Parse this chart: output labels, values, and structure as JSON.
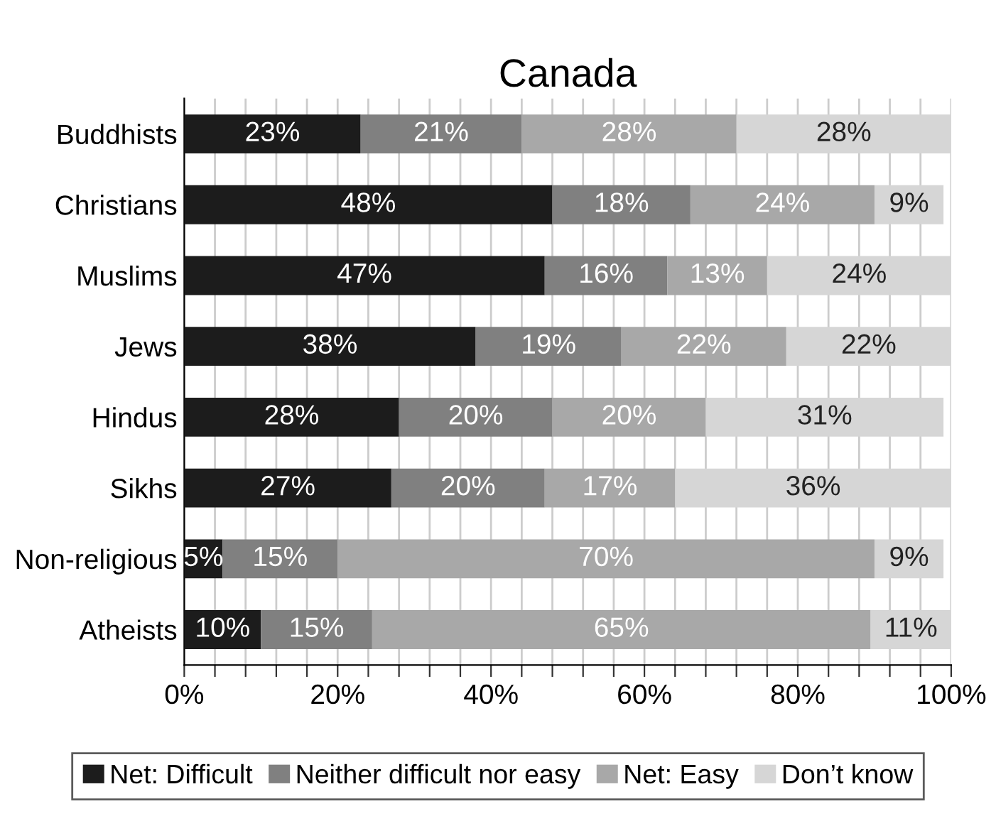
{
  "chart_data": {
    "type": "bar",
    "title": "Canada",
    "orientation": "horizontal",
    "stacked": true,
    "categories": [
      "Buddhists",
      "Christians",
      "Muslims",
      "Jews",
      "Hindus",
      "Sikhs",
      "Non-religious",
      "Atheists"
    ],
    "series": [
      {
        "name": "Net: Difficult",
        "color": "#1c1c1c",
        "values": [
          23,
          48,
          47,
          38,
          28,
          27,
          5,
          10
        ],
        "value_labels": [
          "23%",
          "48%",
          "47%",
          "38%",
          "28%",
          "27%",
          "5%",
          "10%"
        ]
      },
      {
        "name": "Neither difficult nor easy",
        "color": "#808080",
        "values": [
          21,
          18,
          16,
          19,
          20,
          20,
          15,
          14.5
        ],
        "value_labels": [
          "21%",
          "18%",
          "16%",
          "19%",
          "20%",
          "20%",
          "15%",
          "15%"
        ]
      },
      {
        "name": "Net: Easy",
        "color": "#a8a8a8",
        "values": [
          28,
          24,
          13,
          21.5,
          20,
          17,
          70,
          65
        ],
        "value_labels": [
          "28%",
          "24%",
          "13%",
          "22%",
          "20%",
          "17%",
          "70%",
          "65%"
        ]
      },
      {
        "name": "Don’t know",
        "color": "#d6d6d6",
        "values": [
          28,
          9,
          24,
          21.5,
          31,
          36,
          9,
          10.5
        ],
        "value_labels": [
          "28%",
          "9%",
          "24%",
          "22%",
          "31%",
          "36%",
          "9%",
          "11%"
        ]
      }
    ],
    "xlim": [
      0,
      100
    ],
    "xticks": [
      {
        "value": 0,
        "label": "0%"
      },
      {
        "value": 4,
        "label": null
      },
      {
        "value": 8,
        "label": null
      },
      {
        "value": 12,
        "label": null
      },
      {
        "value": 16,
        "label": null
      },
      {
        "value": 20,
        "label": "20%"
      },
      {
        "value": 24,
        "label": null
      },
      {
        "value": 28,
        "label": null
      },
      {
        "value": 32,
        "label": null
      },
      {
        "value": 36,
        "label": null
      },
      {
        "value": 40,
        "label": "40%"
      },
      {
        "value": 44,
        "label": null
      },
      {
        "value": 48,
        "label": null
      },
      {
        "value": 52,
        "label": null
      },
      {
        "value": 56,
        "label": null
      },
      {
        "value": 60,
        "label": "60%"
      },
      {
        "value": 64,
        "label": null
      },
      {
        "value": 68,
        "label": null
      },
      {
        "value": 72,
        "label": null
      },
      {
        "value": 76,
        "label": null
      },
      {
        "value": 80,
        "label": "80%"
      },
      {
        "value": 84,
        "label": null
      },
      {
        "value": 88,
        "label": null
      },
      {
        "value": 92,
        "label": null
      },
      {
        "value": 96,
        "label": null
      },
      {
        "value": 100,
        "label": "100%"
      }
    ],
    "grid": "x",
    "legend": "bottom"
  }
}
